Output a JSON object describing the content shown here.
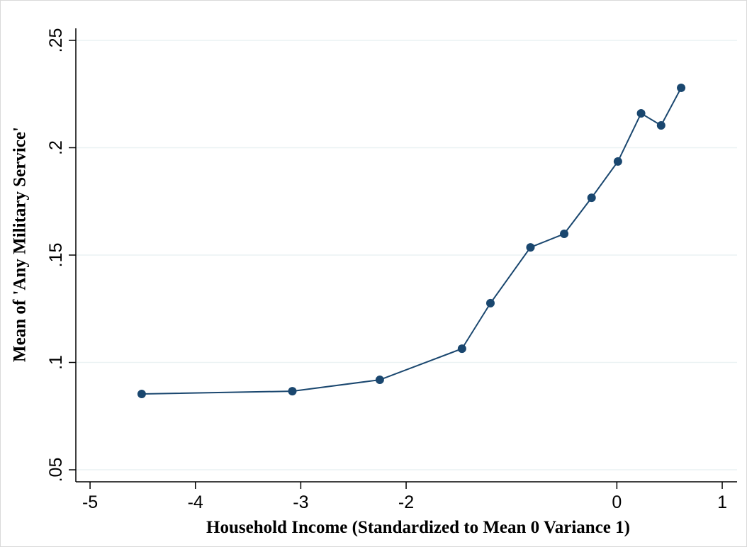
{
  "chart_data": {
    "type": "line",
    "x_label": "Household Income (Standardized to Mean 0 Variance 1)",
    "y_label": "Mean of 'Any Military Service'",
    "series": [
      {
        "color": "#1a476f",
        "x": [
          -4.51,
          -3.08,
          -2.25,
          -1.47,
          -1.2,
          -0.82,
          -0.5,
          -0.24,
          0.01,
          0.23,
          0.42,
          0.61
        ],
        "values": [
          0.0853,
          0.0866,
          0.0919,
          0.1064,
          0.1276,
          0.1536,
          0.1599,
          0.1767,
          0.1936,
          0.216,
          0.2104,
          0.2279
        ]
      }
    ],
    "xlim": [
      -5.135,
      1.141
    ],
    "ylim": [
      0.0444,
      0.2556
    ],
    "xticks": [
      -5,
      -4,
      -3,
      -2,
      0,
      1
    ],
    "yticks": [
      {
        "value": 0.05,
        "label": ".05"
      },
      {
        "value": 0.1,
        "label": ".1"
      },
      {
        "value": 0.15,
        "label": ".15"
      },
      {
        "value": 0.2,
        "label": ".2"
      },
      {
        "value": 0.25,
        "label": ".25"
      }
    ],
    "grid": true,
    "grid_color": "#eaf2f3"
  }
}
